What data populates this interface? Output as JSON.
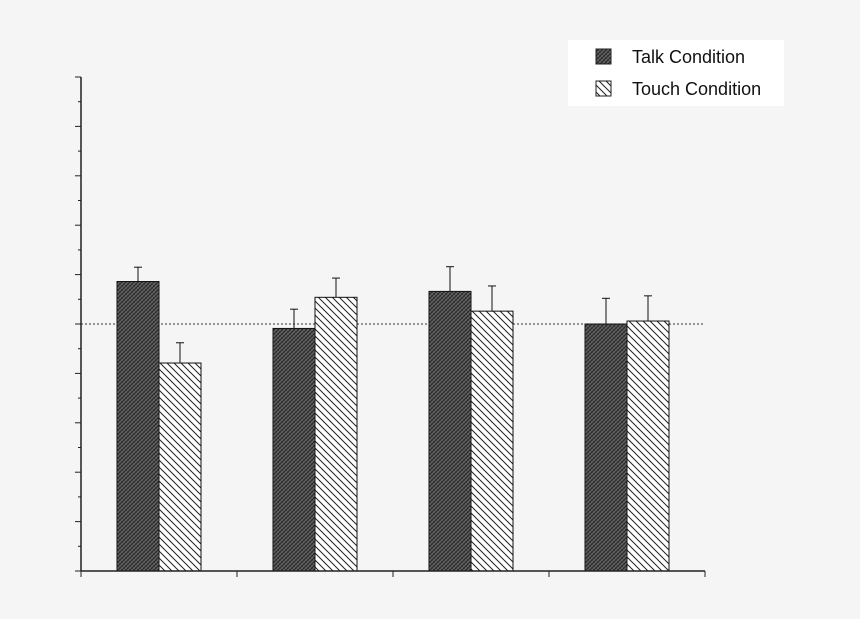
{
  "chart_data": {
    "type": "bar",
    "title": "",
    "xlabel": "",
    "ylabel": "",
    "categories": [
      "",
      "",
      "",
      ""
    ],
    "ylim": [
      0,
      100
    ],
    "reference_line": 50,
    "grid": false,
    "legend_position": "top-right",
    "series": [
      {
        "name": "Talk Condition",
        "pattern": "dense-crosshatch",
        "values": [
          58.6,
          49.1,
          56.6,
          50.0
        ],
        "error": [
          2.9,
          3.9,
          5.0,
          5.2
        ]
      },
      {
        "name": "Touch Condition",
        "pattern": "diagonal-hatch",
        "values": [
          42.1,
          55.4,
          52.6,
          50.6
        ],
        "error": [
          4.1,
          3.9,
          5.1,
          5.1
        ]
      }
    ]
  },
  "colors": {
    "background": "#f5f5f5",
    "axis": "#222222",
    "talk_fill": "#555555",
    "touch_fill": "#ffffff"
  }
}
